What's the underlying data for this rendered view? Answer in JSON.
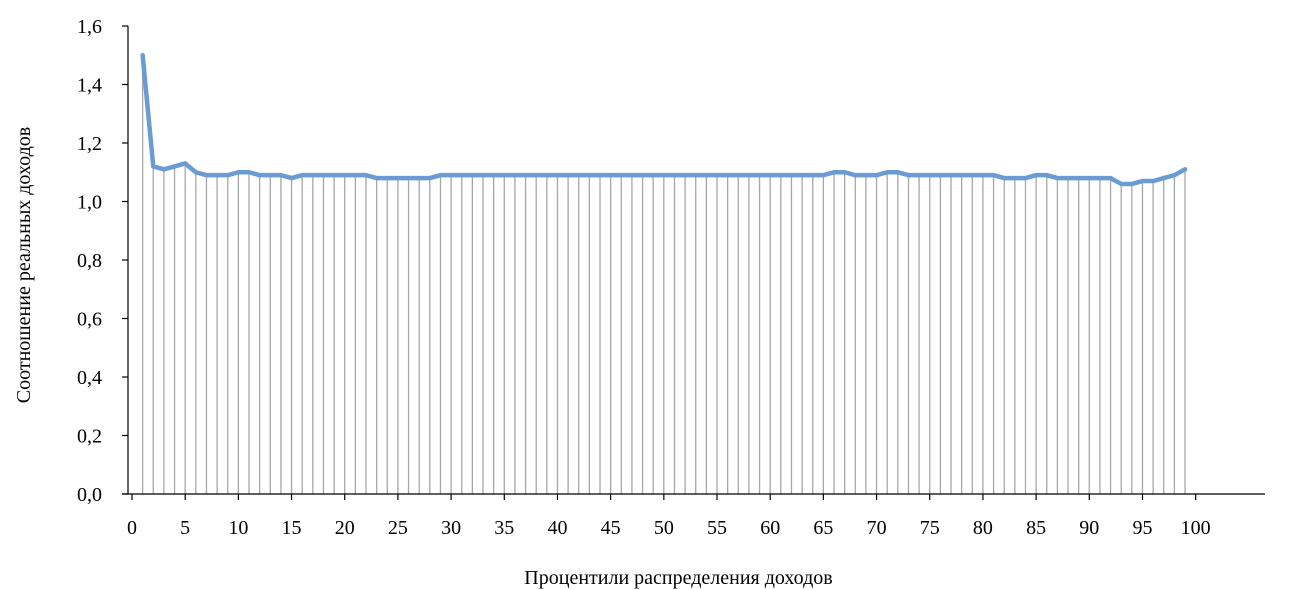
{
  "chart_data": {
    "type": "line",
    "xlabel": "Процентили распределения доходов",
    "ylabel": "Соотношение реальных доходов",
    "xlim": [
      0,
      100
    ],
    "ylim": [
      0.0,
      1.6
    ],
    "x_ticks": [
      "0",
      "5",
      "10",
      "15",
      "20",
      "25",
      "30",
      "35",
      "40",
      "45",
      "50",
      "55",
      "60",
      "65",
      "70",
      "75",
      "80",
      "85",
      "90",
      "95",
      "100"
    ],
    "y_ticks": [
      "0,0",
      "0,2",
      "0,4",
      "0,6",
      "0,8",
      "1,0",
      "1,2",
      "1,4",
      "1,6"
    ],
    "drop_lines": true,
    "line_color": "#6a9bd3",
    "drop_line_color": "#a6a6a6",
    "series": [
      {
        "x": [
          1,
          2,
          3,
          4,
          5,
          6,
          7,
          8,
          9,
          10,
          11,
          12,
          13,
          14,
          15,
          16,
          17,
          18,
          19,
          20,
          21,
          22,
          23,
          24,
          25,
          26,
          27,
          28,
          29,
          30,
          31,
          32,
          33,
          34,
          35,
          36,
          37,
          38,
          39,
          40,
          41,
          42,
          43,
          44,
          45,
          46,
          47,
          48,
          49,
          50,
          51,
          52,
          53,
          54,
          55,
          56,
          57,
          58,
          59,
          60,
          61,
          62,
          63,
          64,
          65,
          66,
          67,
          68,
          69,
          70,
          71,
          72,
          73,
          74,
          75,
          76,
          77,
          78,
          79,
          80,
          81,
          82,
          83,
          84,
          85,
          86,
          87,
          88,
          89,
          90,
          91,
          92,
          93,
          94,
          95,
          96,
          97,
          98,
          99
        ],
        "values": [
          1.5,
          1.12,
          1.11,
          1.12,
          1.13,
          1.1,
          1.09,
          1.09,
          1.09,
          1.1,
          1.1,
          1.09,
          1.09,
          1.09,
          1.08,
          1.09,
          1.09,
          1.09,
          1.09,
          1.09,
          1.09,
          1.09,
          1.08,
          1.08,
          1.08,
          1.08,
          1.08,
          1.08,
          1.09,
          1.09,
          1.09,
          1.09,
          1.09,
          1.09,
          1.09,
          1.09,
          1.09,
          1.09,
          1.09,
          1.09,
          1.09,
          1.09,
          1.09,
          1.09,
          1.09,
          1.09,
          1.09,
          1.09,
          1.09,
          1.09,
          1.09,
          1.09,
          1.09,
          1.09,
          1.09,
          1.09,
          1.09,
          1.09,
          1.09,
          1.09,
          1.09,
          1.09,
          1.09,
          1.09,
          1.09,
          1.1,
          1.1,
          1.09,
          1.09,
          1.09,
          1.1,
          1.1,
          1.09,
          1.09,
          1.09,
          1.09,
          1.09,
          1.09,
          1.09,
          1.09,
          1.09,
          1.08,
          1.08,
          1.08,
          1.09,
          1.09,
          1.08,
          1.08,
          1.08,
          1.08,
          1.08,
          1.08,
          1.06,
          1.06,
          1.07,
          1.07,
          1.08,
          1.09,
          1.11
        ]
      }
    ]
  }
}
